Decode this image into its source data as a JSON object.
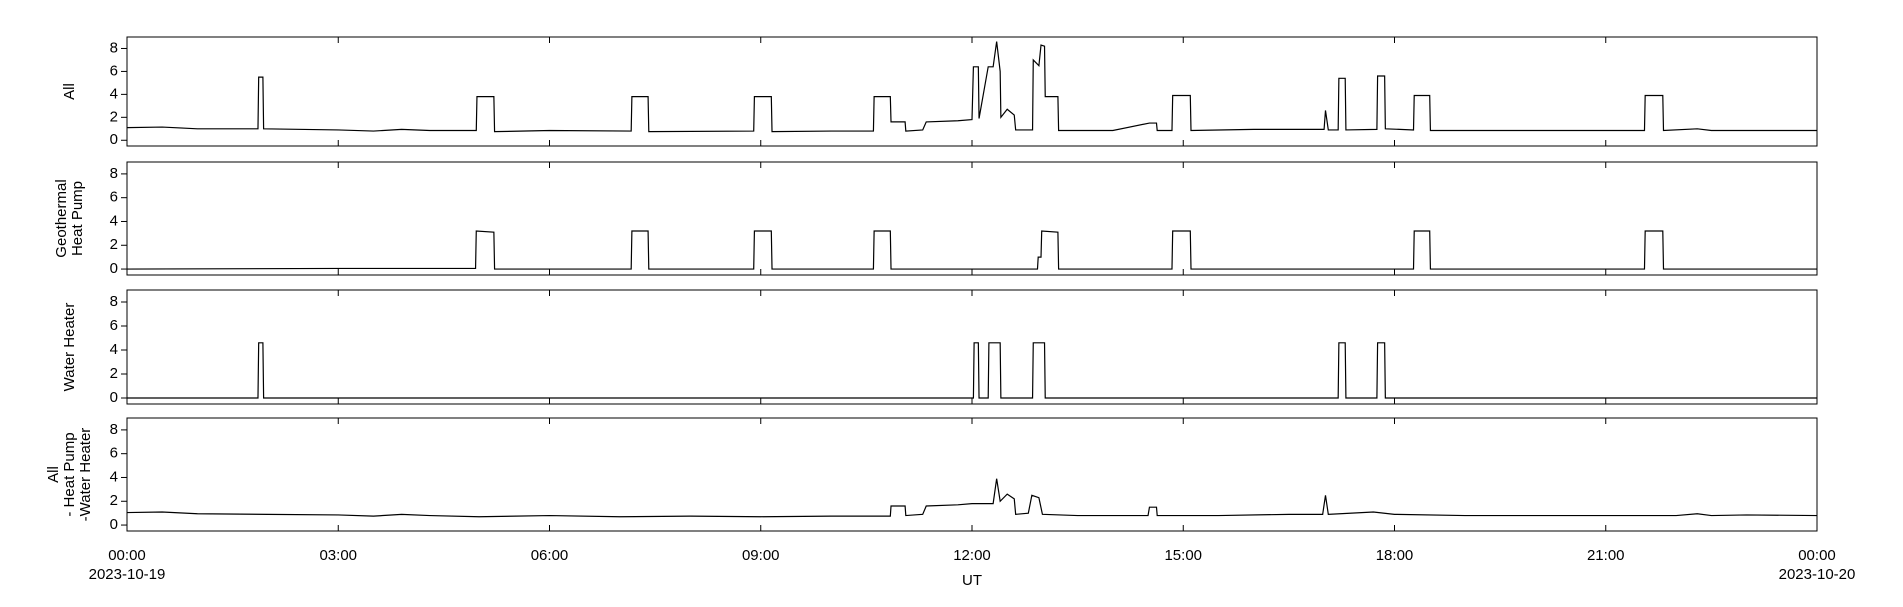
{
  "chart_data": [
    {
      "type": "line",
      "ylabel": [
        "All"
      ],
      "color": "#000000",
      "xlim": [
        0,
        24
      ],
      "ylim": [
        -0.5,
        9
      ],
      "yticks": [
        0,
        2,
        4,
        6,
        8
      ],
      "x": [
        0,
        0.5,
        1.0,
        1.86,
        1.87,
        1.93,
        1.94,
        3.0,
        3.5,
        3.9,
        4.3,
        4.96,
        4.97,
        5.21,
        5.22,
        6.0,
        7.16,
        7.17,
        7.4,
        7.41,
        8.9,
        8.91,
        9.15,
        9.16,
        10.0,
        10.6,
        10.61,
        10.84,
        10.85,
        11.05,
        11.06,
        11.3,
        11.35,
        11.8,
        12.0,
        12.02,
        12.09,
        12.1,
        12.23,
        12.3,
        12.35,
        12.4,
        12.41,
        12.5,
        12.6,
        12.62,
        12.86,
        12.87,
        12.95,
        12.98,
        13.03,
        13.04,
        13.22,
        13.23,
        14.0,
        14.52,
        14.62,
        14.63,
        14.84,
        14.85,
        15.1,
        15.11,
        16.0,
        17.0,
        17.02,
        17.06,
        17.2,
        17.21,
        17.3,
        17.31,
        17.75,
        17.76,
        17.86,
        17.87,
        18.27,
        18.28,
        18.5,
        18.51,
        20.0,
        21.55,
        21.56,
        21.81,
        21.82,
        22.3,
        22.5,
        24
      ],
      "values": [
        1.1,
        1.15,
        1.0,
        1.0,
        5.5,
        5.5,
        1.0,
        0.9,
        0.8,
        0.95,
        0.85,
        0.85,
        3.8,
        3.8,
        0.75,
        0.85,
        0.8,
        3.8,
        3.8,
        0.75,
        0.8,
        3.8,
        3.8,
        0.75,
        0.8,
        0.8,
        3.8,
        3.8,
        1.6,
        1.6,
        0.8,
        0.9,
        1.6,
        1.7,
        1.8,
        6.4,
        6.4,
        1.9,
        6.4,
        6.4,
        8.6,
        6.0,
        2.0,
        2.7,
        2.2,
        0.9,
        0.9,
        7.0,
        6.5,
        8.3,
        8.2,
        3.8,
        3.8,
        0.85,
        0.85,
        1.5,
        1.5,
        0.85,
        0.85,
        3.9,
        3.9,
        0.85,
        0.95,
        0.95,
        2.6,
        0.9,
        0.9,
        5.4,
        5.4,
        0.9,
        0.95,
        5.6,
        5.6,
        1.0,
        0.9,
        3.9,
        3.9,
        0.85,
        0.85,
        0.85,
        3.9,
        3.9,
        0.85,
        1.0,
        0.85,
        0.85
      ]
    },
    {
      "type": "line",
      "ylabel": [
        "Geothermal",
        "Heat Pump"
      ],
      "color": "#000000",
      "xlim": [
        0,
        24
      ],
      "ylim": [
        -0.5,
        9
      ],
      "yticks": [
        0,
        2,
        4,
        6,
        8
      ],
      "x": [
        0,
        3.0,
        4.95,
        4.96,
        5.21,
        5.22,
        7.16,
        7.17,
        7.4,
        7.41,
        8.9,
        8.91,
        9.15,
        9.16,
        10.6,
        10.61,
        10.84,
        10.85,
        12.93,
        12.94,
        12.98,
        12.99,
        13.22,
        13.23,
        14.84,
        14.85,
        15.1,
        15.11,
        18.27,
        18.28,
        18.5,
        18.51,
        21.55,
        21.56,
        21.81,
        21.82,
        24
      ],
      "values": [
        0,
        0.05,
        0.05,
        3.2,
        3.1,
        0,
        0,
        3.2,
        3.2,
        0,
        0,
        3.2,
        3.2,
        0,
        0,
        3.2,
        3.2,
        0,
        0,
        1.0,
        1.0,
        3.2,
        3.1,
        0,
        0,
        3.2,
        3.2,
        0,
        0,
        3.2,
        3.2,
        0,
        0,
        3.2,
        3.2,
        0,
        0
      ]
    },
    {
      "type": "line",
      "ylabel": [
        "Water Heater"
      ],
      "color": "#000000",
      "xlim": [
        0,
        24
      ],
      "ylim": [
        -0.5,
        9
      ],
      "yticks": [
        0,
        2,
        4,
        6,
        8
      ],
      "x": [
        0,
        1.86,
        1.87,
        1.93,
        1.94,
        12.02,
        12.03,
        12.09,
        12.1,
        12.23,
        12.24,
        12.4,
        12.41,
        12.86,
        12.87,
        13.03,
        13.04,
        17.2,
        17.21,
        17.3,
        17.31,
        17.75,
        17.76,
        17.86,
        17.87,
        24
      ],
      "values": [
        0,
        0,
        4.6,
        4.6,
        0,
        0,
        4.6,
        4.6,
        0,
        0,
        4.6,
        4.6,
        0,
        0,
        4.6,
        4.6,
        0,
        0,
        4.6,
        4.6,
        0,
        0,
        4.6,
        4.6,
        0,
        0
      ]
    },
    {
      "type": "line",
      "ylabel": [
        "All",
        "- Heat Pump",
        "-Water Heater"
      ],
      "color": "#000000",
      "xlim": [
        0,
        24
      ],
      "ylim": [
        -0.5,
        9
      ],
      "yticks": [
        0,
        2,
        4,
        6,
        8
      ],
      "xlabel": "UT",
      "xticks": [
        {
          "value": 0,
          "label": "00:00"
        },
        {
          "value": 3,
          "label": "03:00"
        },
        {
          "value": 6,
          "label": "06:00"
        },
        {
          "value": 9,
          "label": "09:00"
        },
        {
          "value": 12,
          "label": "12:00"
        },
        {
          "value": 15,
          "label": "15:00"
        },
        {
          "value": 18,
          "label": "18:00"
        },
        {
          "value": 21,
          "label": "21:00"
        },
        {
          "value": 24,
          "label": "00:00"
        }
      ],
      "xtick_dates": [
        {
          "value": 0,
          "label": "2023-10-19"
        },
        {
          "value": 24,
          "label": "2023-10-20"
        }
      ],
      "x": [
        0,
        0.5,
        1.0,
        2.0,
        3.0,
        3.5,
        3.9,
        4.3,
        5.0,
        6.0,
        7.0,
        8.0,
        9.0,
        10.0,
        10.84,
        10.85,
        11.05,
        11.06,
        11.3,
        11.35,
        11.8,
        12.0,
        12.3,
        12.35,
        12.4,
        12.5,
        12.6,
        12.62,
        12.8,
        12.85,
        12.95,
        13.0,
        13.5,
        14.0,
        14.5,
        14.52,
        14.62,
        14.63,
        15.5,
        16.5,
        16.98,
        17.02,
        17.06,
        17.7,
        18.0,
        19.0,
        20.0,
        21.0,
        22.0,
        22.3,
        22.5,
        23.0,
        24.0
      ],
      "values": [
        1.05,
        1.1,
        0.95,
        0.9,
        0.85,
        0.75,
        0.9,
        0.8,
        0.7,
        0.8,
        0.7,
        0.75,
        0.7,
        0.75,
        0.75,
        1.6,
        1.6,
        0.8,
        0.9,
        1.6,
        1.7,
        1.8,
        1.8,
        3.9,
        2.0,
        2.6,
        2.2,
        0.9,
        1.0,
        2.5,
        2.3,
        0.9,
        0.8,
        0.8,
        0.8,
        1.5,
        1.5,
        0.8,
        0.8,
        0.9,
        0.9,
        2.5,
        0.9,
        1.1,
        0.9,
        0.8,
        0.8,
        0.8,
        0.8,
        0.95,
        0.8,
        0.85,
        0.8
      ]
    }
  ]
}
